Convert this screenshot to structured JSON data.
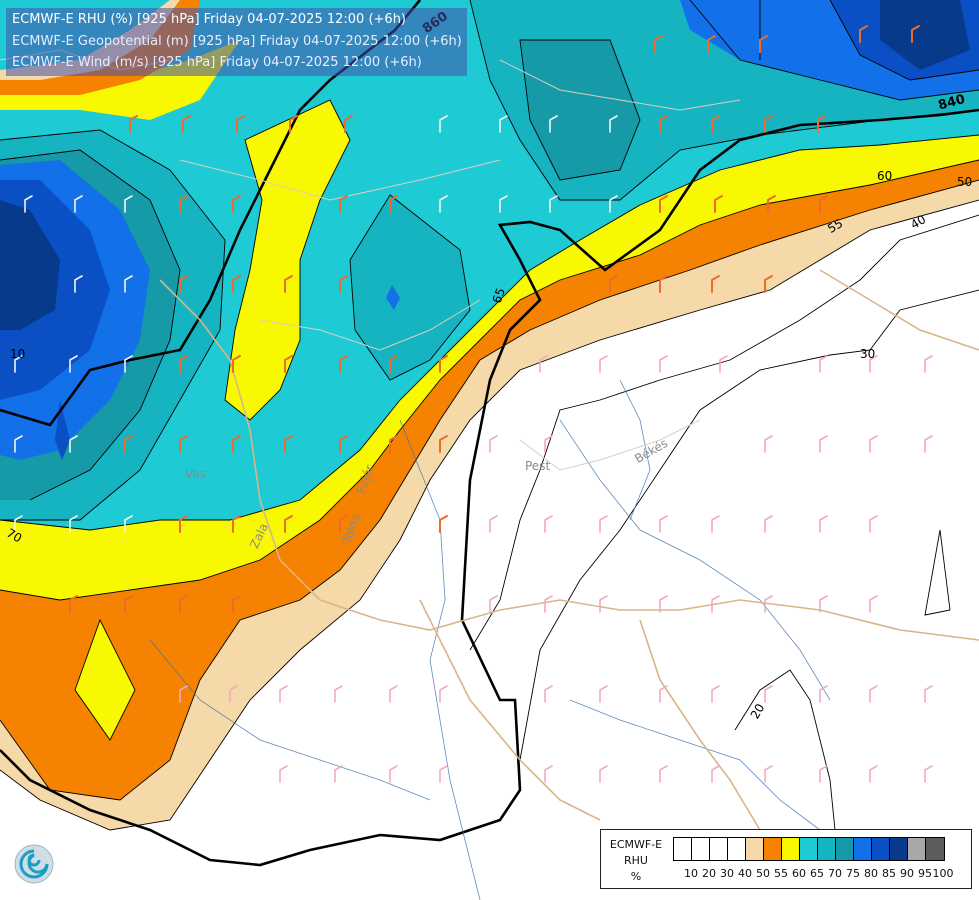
{
  "header": {
    "line1": "ECMWF-E RHU (%) [925 hPa] Friday 04-07-2025 12:00 (+6h)",
    "line2": "ECMWF-E Geopotential (m) [925 hPa] Friday 04-07-2025 12:00 (+6h)",
    "line3": "ECMWF-E Wind (m/s) [925 hPa] Friday 04-07-2025 12:00 (+6h)"
  },
  "legend": {
    "model": "ECMWF-E",
    "variable": "RHU",
    "unit": "%",
    "ticks": [
      "10",
      "20",
      "30",
      "40",
      "50",
      "55",
      "60",
      "65",
      "70",
      "75",
      "80",
      "85",
      "90",
      "95",
      "100"
    ],
    "colors": [
      "#ffffff",
      "#ffffff",
      "#ffffff",
      "#ffffff",
      "#f5d9a8",
      "#f58200",
      "#f8f800",
      "#1ecad3",
      "#16b4c0",
      "#169aa8",
      "#1270e8",
      "#0a4fc4",
      "#083a8c",
      "#a8a8a8",
      "#5c5c5c"
    ]
  },
  "map_labels": {
    "geopotential_860": "860",
    "geopotential_840": "840",
    "rh_60": "60",
    "rh_50": "50",
    "rh_55": "55",
    "rh_40": "40",
    "rh_30": "30",
    "rh_20": "20",
    "rh_65": "65",
    "rh_70": "70",
    "rh_10": "10",
    "region_pest": "Pest",
    "region_bekes": "Békés",
    "region_vas": "Vas",
    "region_zala": "Zala",
    "region_fejer": "Fejér",
    "region_tolna": "Tolna"
  }
}
